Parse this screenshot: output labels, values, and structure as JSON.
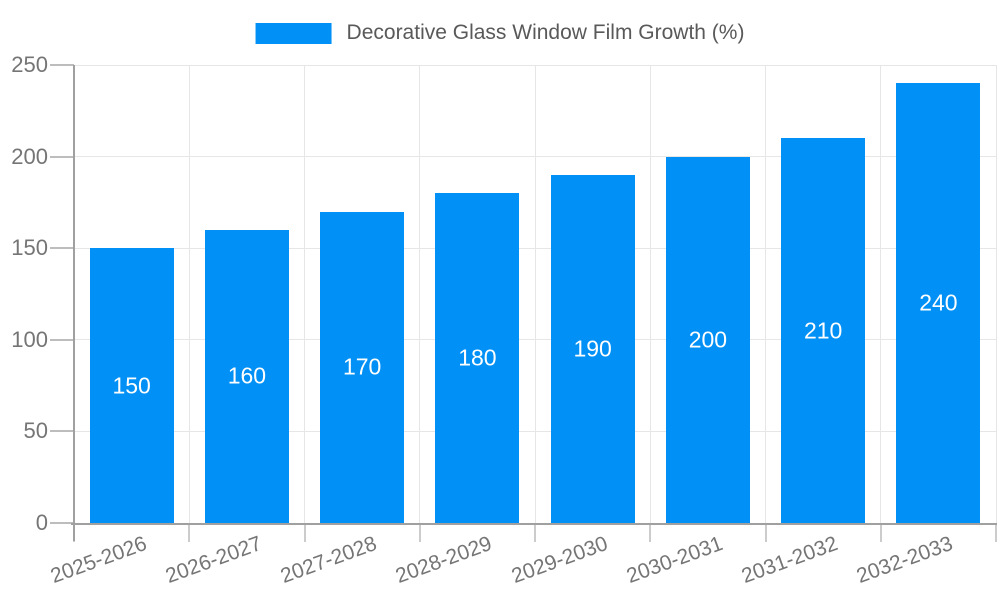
{
  "chart_data": {
    "type": "bar",
    "title": "Decorative Glass Window Film Growth (%)",
    "categories": [
      "2025-2026",
      "2026-2027",
      "2027-2028",
      "2028-2029",
      "2029-2030",
      "2030-2031",
      "2031-2032",
      "2032-2033"
    ],
    "values": [
      150,
      160,
      170,
      180,
      190,
      200,
      210,
      240
    ],
    "xlabel": "",
    "ylabel": "",
    "ylim": [
      0,
      250
    ],
    "yticks": [
      0,
      50,
      100,
      150,
      200,
      250
    ],
    "grid": true,
    "legend_position": "top-center",
    "bar_color": "#0190f5",
    "value_label_color": "#ffffff",
    "gridline_color": "#e6e6e6",
    "axis_color": "#a0a0a0",
    "axis_label_color": "#757575",
    "legend_text_color": "#595959",
    "background_color": "#ffffff"
  }
}
